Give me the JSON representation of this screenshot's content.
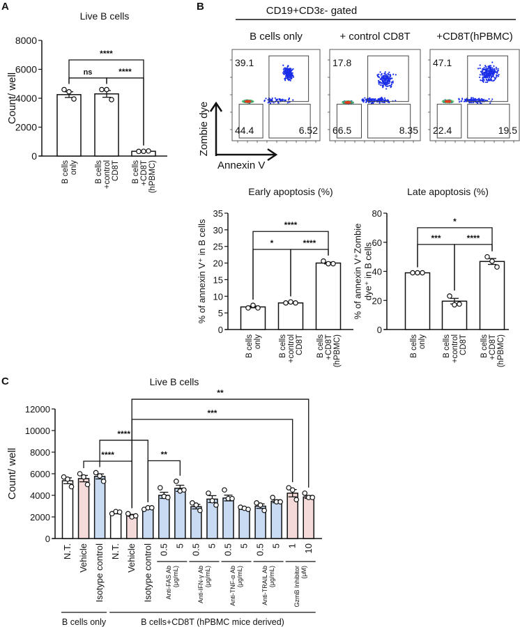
{
  "panels": {
    "a": "A",
    "b": "B",
    "c": "C"
  },
  "flow": {
    "header": "CD19+CD3ε- gated",
    "y_axis_label": "Zombie dye",
    "x_axis_label": "Annexin V",
    "plots": [
      {
        "title": "B cells only",
        "late": "39.1",
        "live": "44.4",
        "early": "6.52"
      },
      {
        "title": "+ control CD8T",
        "late": "17.8",
        "live": "66.5",
        "early": "8.35"
      },
      {
        "title": "+CD8T(hPBMC)",
        "late": "47.1",
        "live": "22.4",
        "early": "19.5"
      }
    ]
  },
  "colors": {
    "white": "#ffffff",
    "pink": "#f5dada",
    "blue": "#c9dbf3",
    "stroke": "#111111"
  },
  "chart_data": [
    {
      "id": "A",
      "type": "bar",
      "title": "Live B cells",
      "ylabel": "Count/ well",
      "ylim": [
        0,
        8000
      ],
      "yticks": [
        0,
        2000,
        4000,
        6000,
        8000
      ],
      "categories": [
        "B cells\nonly",
        "B cells\n+control\nCD8T",
        "B cells\n+CD8T\n(hPBMC)"
      ],
      "values": [
        4250,
        4300,
        330
      ],
      "points": [
        [
          4600,
          4450,
          3950
        ],
        [
          4600,
          4600,
          3900
        ],
        [
          320,
          330,
          350
        ]
      ],
      "colors": [
        "white",
        "white",
        "white"
      ],
      "significance": [
        {
          "from": 0,
          "to": 1,
          "label": "ns",
          "y": 5400
        },
        {
          "from": 1,
          "to": 2,
          "label": "****",
          "y": 5400
        },
        {
          "from": 0,
          "to": 2,
          "label": "****",
          "y": 6650
        }
      ]
    },
    {
      "id": "B-early",
      "type": "bar",
      "title": "Early apoptosis (%)",
      "ylabel": "% of annexin V⁺ in B cells",
      "ylim": [
        0,
        35
      ],
      "yticks": [
        0,
        5,
        10,
        15,
        20,
        25,
        30,
        35
      ],
      "categories": [
        "B cells\nonly",
        "B cells\n+control\nCD8T",
        "B cells\n+CD8T\n(hPBMC)"
      ],
      "values": [
        6.8,
        8.0,
        20.0
      ],
      "points": [
        [
          6.5,
          7.3,
          6.5
        ],
        [
          8.0,
          8.3,
          8.0
        ],
        [
          20.6,
          19.8,
          19.8
        ]
      ],
      "colors": [
        "white",
        "white",
        "white"
      ],
      "significance": [
        {
          "from": 0,
          "to": 1,
          "label": "*",
          "y": 24.1
        },
        {
          "from": 1,
          "to": 2,
          "label": "****",
          "y": 24.1
        },
        {
          "from": 0,
          "to": 2,
          "label": "****",
          "y": 29.5
        }
      ]
    },
    {
      "id": "B-late",
      "type": "bar",
      "title": "Late apoptosis (%)",
      "ylabel": "% of annexin V⁺Zombie\ndye⁺ in B cells",
      "ylim": [
        0,
        80
      ],
      "yticks": [
        0,
        20,
        40,
        60,
        80
      ],
      "categories": [
        "B cells\nonly",
        "B cells\n+control\nCD8T",
        "B cells\n+CD8T\n(hPBMC)"
      ],
      "values": [
        39.0,
        19.5,
        46.8
      ],
      "points": [
        [
          39,
          39,
          39
        ],
        [
          23,
          17,
          17.5
        ],
        [
          50,
          47,
          43
        ]
      ],
      "colors": [
        "white",
        "white",
        "white"
      ],
      "significance": [
        {
          "from": 0,
          "to": 1,
          "label": "***",
          "y": 58.5
        },
        {
          "from": 1,
          "to": 2,
          "label": "****",
          "y": 58.5
        },
        {
          "from": 0,
          "to": 2,
          "label": "*",
          "y": 70
        }
      ]
    },
    {
      "id": "C",
      "type": "bar",
      "title": "Live B cells",
      "ylabel": "Count/ well",
      "ylim": [
        0,
        12000
      ],
      "yticks": [
        0,
        2000,
        4000,
        6000,
        8000,
        10000,
        12000
      ],
      "categories": [
        "N.T.",
        "Vehicle",
        "Isotype control",
        "N.T.",
        "Vehicle",
        "Isotype control",
        "0.5",
        "5",
        "0.5",
        "5",
        "0.5",
        "5",
        "0.5",
        "5",
        "1",
        "10"
      ],
      "values": [
        5350,
        5550,
        5750,
        2350,
        2150,
        2800,
        4000,
        4650,
        2950,
        3650,
        3750,
        2750,
        3000,
        3450,
        4200,
        3850
      ],
      "points": [
        [
          5700,
          5500,
          4800
        ],
        [
          6000,
          5700,
          5000
        ],
        [
          6100,
          5800,
          5300
        ],
        [
          2300,
          2500,
          2450
        ],
        [
          2300,
          2000,
          2100
        ],
        [
          2700,
          2850,
          2850
        ],
        [
          4700,
          3900,
          3800
        ],
        [
          5300,
          4400,
          4500
        ],
        [
          3300,
          3100,
          2600
        ],
        [
          4200,
          3500,
          3100
        ],
        [
          4500,
          3700,
          3700
        ],
        [
          2900,
          2800,
          2700
        ],
        [
          3300,
          3100,
          2600
        ],
        [
          3800,
          3400,
          3400
        ],
        [
          4700,
          4500,
          3600
        ],
        [
          4200,
          3800,
          3800
        ]
      ],
      "colors": [
        "white",
        "pink",
        "blue",
        "white",
        "pink",
        "blue",
        "blue",
        "blue",
        "blue",
        "blue",
        "blue",
        "blue",
        "blue",
        "blue",
        "pink",
        "pink"
      ],
      "significance": [
        {
          "from": 1,
          "to": 4,
          "label": "****",
          "y": 7160
        },
        {
          "from": 2,
          "to": 5,
          "label": "****",
          "y": 9100
        },
        {
          "from": 5,
          "to": 7,
          "label": "**",
          "y": 7200
        },
        {
          "from": 4,
          "to": 14,
          "label": "***",
          "y": 11030
        },
        {
          "from": 4,
          "to": 15,
          "label": "**",
          "y": 12900
        }
      ],
      "subgroups": [
        {
          "from": 6,
          "to": 7,
          "label": "Anti-FAS Ab\n(μg/mL)"
        },
        {
          "from": 8,
          "to": 9,
          "label": "Anti-IFN-γ Ab\n(μg/mL)"
        },
        {
          "from": 10,
          "to": 11,
          "label": "Anti-TNF-α Ab\n(μg/mL)"
        },
        {
          "from": 12,
          "to": 13,
          "label": "Anti-TRAIL Ab\n(μg/mL)"
        },
        {
          "from": 14,
          "to": 15,
          "label": "GzmB Inhibitor\n(μM)"
        }
      ],
      "groups": [
        {
          "from": 0,
          "to": 2,
          "label": "B cells only"
        },
        {
          "from": 3,
          "to": 15,
          "label": "B cells+CD8T (hPBMC mice derived)"
        }
      ]
    }
  ]
}
